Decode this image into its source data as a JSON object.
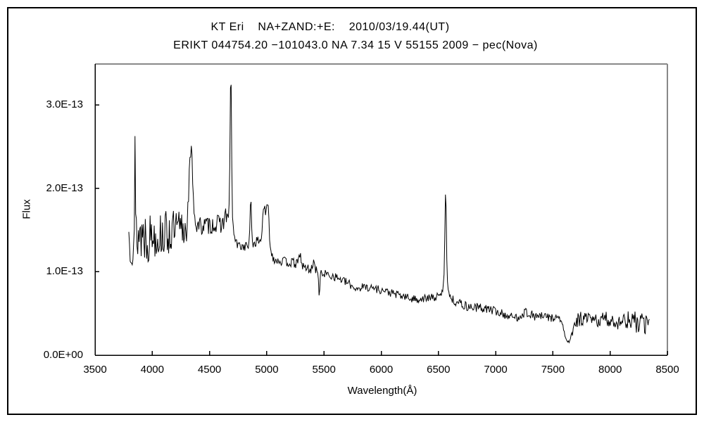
{
  "window": {
    "background": "#ffffff",
    "outer_border_color": "#000000",
    "axis_color": "#000000",
    "frame_top_right_color": "#888888",
    "spectrum_color": "#000000"
  },
  "chart_data": {
    "type": "line",
    "title": "KT Eri    NA+ZAND:+E:    2010/03/19.44(UT)",
    "subtitle": "ERIKT 044754.20 −101043.0 NA 7.34 15 V 55155 2009 − pec(Nova)",
    "xlabel": "Wavelength(Å)",
    "ylabel": "Flux",
    "grid": false,
    "legend": null,
    "xlim": [
      3500,
      8500
    ],
    "ylim": [
      0,
      3.49e-13
    ],
    "ylim_e13": [
      0,
      3.49
    ],
    "x_ticks": [
      3500,
      4000,
      4500,
      5000,
      5500,
      6000,
      6500,
      7000,
      7500,
      8000,
      8500
    ],
    "x_tick_labels": [
      "3500",
      "4000",
      "4500",
      "5000",
      "5500",
      "6000",
      "6500",
      "7000",
      "7500",
      "8000",
      "8500"
    ],
    "y_ticks_e13": [
      0,
      1,
      2,
      3
    ],
    "y_tick_labels": [
      "0.0E+00",
      "1.0E-13",
      "2.0E-13",
      "3.0E-13"
    ],
    "flux_unit_note": "flux values below are in units of 1e-13 (matching y-axis labels)",
    "series": [
      {
        "name": "KT Eri optical spectrum 2010/03/19.44 UT",
        "color": "#000000",
        "x_range": [
          3795,
          8346
        ],
        "sample_step_A": 6,
        "noise_seed": 13,
        "continuum_points": [
          [
            3795,
            1.43
          ],
          [
            3900,
            1.46
          ],
          [
            4050,
            1.44
          ],
          [
            4200,
            1.48
          ],
          [
            4300,
            1.51
          ],
          [
            4420,
            1.55
          ],
          [
            4520,
            1.56
          ],
          [
            4620,
            1.58
          ],
          [
            4665,
            1.58
          ],
          [
            4705,
            1.46
          ],
          [
            4740,
            1.32
          ],
          [
            4800,
            1.3
          ],
          [
            4840,
            1.32
          ],
          [
            4885,
            1.33
          ],
          [
            4925,
            1.38
          ],
          [
            4955,
            1.33
          ],
          [
            5045,
            1.2
          ],
          [
            5070,
            1.15
          ],
          [
            5150,
            1.12
          ],
          [
            5250,
            1.1
          ],
          [
            5350,
            1.04
          ],
          [
            5410,
            1.02
          ],
          [
            5500,
            0.98
          ],
          [
            5600,
            0.94
          ],
          [
            5700,
            0.87
          ],
          [
            5780,
            0.8
          ],
          [
            5860,
            0.82
          ],
          [
            5950,
            0.8
          ],
          [
            6050,
            0.76
          ],
          [
            6150,
            0.72
          ],
          [
            6280,
            0.67
          ],
          [
            6400,
            0.68
          ],
          [
            6500,
            0.7
          ],
          [
            6540,
            0.71
          ],
          [
            6600,
            0.68
          ],
          [
            6660,
            0.64
          ],
          [
            6750,
            0.58
          ],
          [
            6850,
            0.57
          ],
          [
            6950,
            0.55
          ],
          [
            7050,
            0.5
          ],
          [
            7150,
            0.45
          ],
          [
            7200,
            0.46
          ],
          [
            7260,
            0.52
          ],
          [
            7330,
            0.47
          ],
          [
            7420,
            0.46
          ],
          [
            7510,
            0.45
          ],
          [
            7570,
            0.43
          ],
          [
            7595,
            0.3
          ],
          [
            7612,
            0.18
          ],
          [
            7650,
            0.17
          ],
          [
            7672,
            0.27
          ],
          [
            7700,
            0.42
          ],
          [
            7780,
            0.43
          ],
          [
            7860,
            0.41
          ],
          [
            7950,
            0.43
          ],
          [
            8050,
            0.4
          ],
          [
            8150,
            0.42
          ],
          [
            8250,
            0.38
          ],
          [
            8346,
            0.38
          ]
        ],
        "features": [
          {
            "name": "noise-spike-3850",
            "center": 3850,
            "sigma": 2.5,
            "height": 0.99
          },
          {
            "name": "H-gamma-4340",
            "center": 4338,
            "sigma": 17,
            "height": 0.9
          },
          {
            "name": "N-III-4640",
            "center": 4640,
            "sigma": 8,
            "height": 0.12
          },
          {
            "name": "He-II-4686",
            "center": 4686,
            "sigma": 6,
            "height": 1.7
          },
          {
            "name": "He-II-4686-base",
            "center": 4686,
            "sigma": 14,
            "height": 0.22
          },
          {
            "name": "H-beta-4861",
            "center": 4861,
            "sigma": 6,
            "height": 0.53
          },
          {
            "name": "He-I-Fe-4975",
            "center": 4975,
            "sigma": 12,
            "height": 0.48
          },
          {
            "name": "He-I-5008",
            "center": 5008,
            "sigma": 12,
            "height": 0.55
          },
          {
            "name": "Fe-II-5290",
            "center": 5290,
            "sigma": 8,
            "height": 0.15
          },
          {
            "name": "He-II-5411",
            "center": 5411,
            "sigma": 4.5,
            "height": 0.2
          },
          {
            "name": "absorption-5460",
            "center": 5459,
            "sigma": 5,
            "height": -0.29
          },
          {
            "name": "H-alpha-6563",
            "center": 6563,
            "sigma": 6,
            "height": 1.06
          },
          {
            "name": "H-alpha-base",
            "center": 6563,
            "sigma": 18,
            "height": 0.25
          }
        ],
        "noise_regions": [
          {
            "from": 3795,
            "to": 3980,
            "amp": 0.36
          },
          {
            "from": 3980,
            "to": 4300,
            "amp": 0.27
          },
          {
            "from": 4300,
            "to": 4380,
            "amp": 0.12
          },
          {
            "from": 4380,
            "to": 4660,
            "amp": 0.11
          },
          {
            "from": 4660,
            "to": 4725,
            "amp": 0.05
          },
          {
            "from": 4725,
            "to": 5050,
            "amp": 0.055
          },
          {
            "from": 5050,
            "to": 5440,
            "amp": 0.06
          },
          {
            "from": 5440,
            "to": 5485,
            "amp": 0.03
          },
          {
            "from": 5485,
            "to": 6520,
            "amp": 0.05
          },
          {
            "from": 6520,
            "to": 6620,
            "amp": 0.035
          },
          {
            "from": 6620,
            "to": 7100,
            "amp": 0.055
          },
          {
            "from": 7100,
            "to": 7580,
            "amp": 0.055
          },
          {
            "from": 7580,
            "to": 7690,
            "amp": 0.035
          },
          {
            "from": 7690,
            "to": 8150,
            "amp": 0.095
          },
          {
            "from": 8150,
            "to": 8346,
            "amp": 0.13
          }
        ]
      }
    ]
  }
}
